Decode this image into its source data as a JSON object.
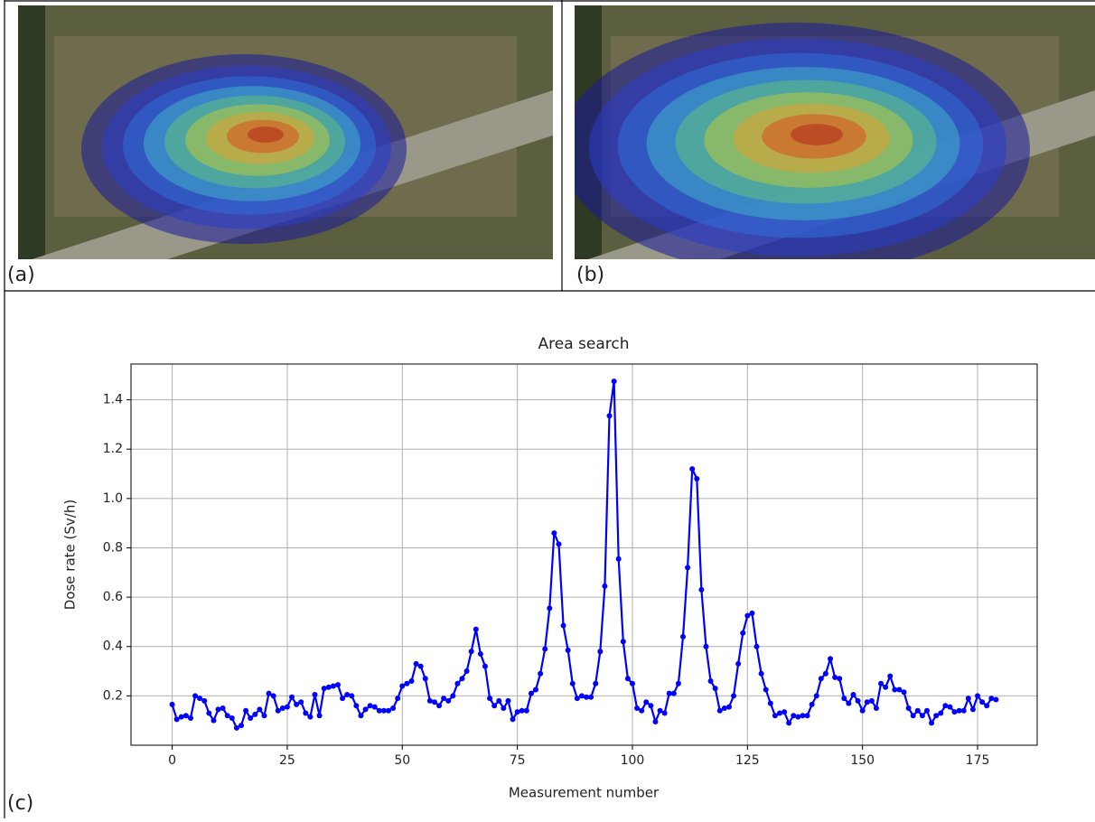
{
  "panel_labels": [
    "(a)",
    "(b)",
    "(c)"
  ],
  "chart_data": {
    "type": "line",
    "title": "Area search",
    "x_label": "Measurement number",
    "y_label": "Dose rate (Sv/h)",
    "color": "#0000ff",
    "grid": true,
    "xlim": [
      -8.95,
      187.95
    ],
    "xticks": [
      0,
      25,
      50,
      75,
      100,
      125,
      150,
      175
    ],
    "ylim": [
      0.0,
      1.545
    ],
    "yticks": [
      0.2,
      0.4,
      0.6,
      0.8,
      {
        "value": 1,
        "label": "1.0"
      },
      1.2,
      1.4
    ],
    "x": [
      0,
      1,
      2,
      3,
      4,
      5,
      6,
      7,
      8,
      9,
      10,
      11,
      12,
      13,
      14,
      15,
      16,
      17,
      18,
      19,
      20,
      21,
      22,
      23,
      24,
      25,
      26,
      27,
      28,
      29,
      30,
      31,
      32,
      33,
      34,
      35,
      36,
      37,
      38,
      39,
      40,
      41,
      42,
      43,
      44,
      45,
      46,
      47,
      48,
      49,
      50,
      51,
      52,
      53,
      54,
      55,
      56,
      57,
      58,
      59,
      60,
      61,
      62,
      63,
      64,
      65,
      66,
      67,
      68,
      69,
      70,
      71,
      72,
      73,
      74,
      75,
      76,
      77,
      78,
      79,
      80,
      81,
      82,
      83,
      84,
      85,
      86,
      87,
      88,
      89,
      90,
      91,
      92,
      93,
      94,
      95,
      96,
      97,
      98,
      99,
      100,
      101,
      102,
      103,
      104,
      105,
      106,
      107,
      108,
      109,
      110,
      111,
      112,
      113,
      114,
      115,
      116,
      117,
      118,
      119,
      120,
      121,
      122,
      123,
      124,
      125,
      126,
      127,
      128,
      129,
      130,
      131,
      132,
      133,
      134,
      135,
      136,
      137,
      138,
      139,
      140,
      141,
      142,
      143,
      144,
      145,
      146,
      147,
      148,
      149,
      150,
      151,
      152,
      153,
      154,
      155,
      156,
      157,
      158,
      159,
      160,
      161,
      162,
      163,
      164,
      165,
      166,
      167,
      168,
      169,
      170,
      171,
      172,
      173,
      174,
      175,
      176,
      177,
      178,
      179
    ],
    "values": [
      0.165,
      0.105,
      0.115,
      0.12,
      0.11,
      0.2,
      0.19,
      0.18,
      0.13,
      0.1,
      0.145,
      0.15,
      0.12,
      0.11,
      0.07,
      0.08,
      0.14,
      0.11,
      0.125,
      0.145,
      0.12,
      0.21,
      0.2,
      0.14,
      0.15,
      0.155,
      0.195,
      0.165,
      0.175,
      0.13,
      0.115,
      0.205,
      0.12,
      0.23,
      0.235,
      0.24,
      0.245,
      0.19,
      0.205,
      0.2,
      0.16,
      0.12,
      0.145,
      0.16,
      0.155,
      0.14,
      0.14,
      0.14,
      0.15,
      0.19,
      0.24,
      0.25,
      0.26,
      0.33,
      0.32,
      0.27,
      0.18,
      0.175,
      0.16,
      0.19,
      0.18,
      0.2,
      0.25,
      0.27,
      0.3,
      0.38,
      0.47,
      0.37,
      0.32,
      0.19,
      0.16,
      0.18,
      0.15,
      0.18,
      0.105,
      0.135,
      0.14,
      0.14,
      0.21,
      0.225,
      0.29,
      0.39,
      0.555,
      0.86,
      0.815,
      0.485,
      0.385,
      0.25,
      0.19,
      0.2,
      0.195,
      0.195,
      0.25,
      0.38,
      0.645,
      1.335,
      1.475,
      0.755,
      0.42,
      0.27,
      0.25,
      0.15,
      0.14,
      0.175,
      0.16,
      0.095,
      0.14,
      0.13,
      0.21,
      0.21,
      0.25,
      0.44,
      0.72,
      1.12,
      1.08,
      0.63,
      0.4,
      0.26,
      0.23,
      0.14,
      0.15,
      0.155,
      0.2,
      0.33,
      0.455,
      0.525,
      0.535,
      0.4,
      0.29,
      0.225,
      0.17,
      0.12,
      0.13,
      0.135,
      0.09,
      0.12,
      0.115,
      0.12,
      0.12,
      0.165,
      0.2,
      0.27,
      0.29,
      0.35,
      0.275,
      0.27,
      0.19,
      0.17,
      0.205,
      0.18,
      0.14,
      0.175,
      0.18,
      0.15,
      0.25,
      0.235,
      0.28,
      0.225,
      0.225,
      0.215,
      0.15,
      0.12,
      0.14,
      0.12,
      0.14,
      0.09,
      0.12,
      0.13,
      0.16,
      0.155,
      0.135,
      0.14,
      0.14,
      0.19,
      0.145,
      0.2,
      0.175,
      0.16,
      0.19,
      0.185
    ]
  }
}
